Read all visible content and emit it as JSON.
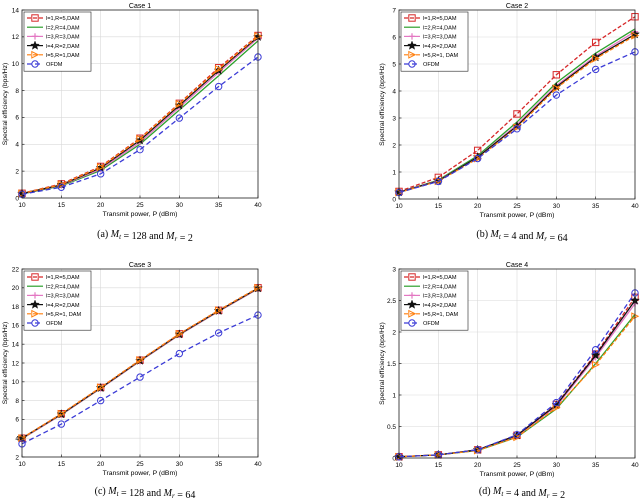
{
  "chart_data": [
    {
      "type": "line",
      "title": "Case 1",
      "xlabel": "Transmit power, P (dBm)",
      "ylabel": "Spectral efficiency (bps/Hz)",
      "caption": "(a)  Mt = 128 and Mr = 2",
      "x": [
        10,
        15,
        20,
        25,
        30,
        35,
        40
      ],
      "xlim": [
        10,
        40
      ],
      "ylim": [
        0,
        14
      ],
      "xticks": [
        10,
        15,
        20,
        25,
        30,
        35,
        40
      ],
      "yticks": [
        0,
        2,
        4,
        6,
        8,
        10,
        12,
        14
      ],
      "grid": true,
      "legend_position": "top-left",
      "series": [
        {
          "name": "l=1,R=5,DAM",
          "color": "#d62728",
          "dash": "4,2",
          "marker": "square",
          "values": [
            0.35,
            1.05,
            2.35,
            4.45,
            7.05,
            9.7,
            12.1
          ]
        },
        {
          "name": "l=2,R=4,DAM",
          "color": "#2ca02c",
          "dash": "",
          "marker": "none",
          "values": [
            0.3,
            0.9,
            2.05,
            4.0,
            6.55,
            9.1,
            11.7
          ]
        },
        {
          "name": "l=3,R=3,DAM",
          "color": "#e377c2",
          "dash": "",
          "marker": "plus",
          "values": [
            0.32,
            0.95,
            2.15,
            4.15,
            6.75,
            9.35,
            11.9
          ]
        },
        {
          "name": "l=4,R=2,DAM",
          "color": "#111111",
          "dash": "",
          "marker": "star",
          "values": [
            0.33,
            0.98,
            2.25,
            4.3,
            6.9,
            9.5,
            12.0
          ]
        },
        {
          "name": "l=5,R=1,DAM",
          "color": "#ff7f0e",
          "dash": "4,2",
          "marker": "triangle",
          "values": [
            0.34,
            1.0,
            2.3,
            4.4,
            7.0,
            9.6,
            12.05
          ]
        },
        {
          "name": "OFDM",
          "color": "#3b3bd6",
          "dash": "5,3",
          "marker": "circle",
          "values": [
            0.28,
            0.8,
            1.8,
            3.6,
            5.95,
            8.3,
            10.5
          ]
        }
      ]
    },
    {
      "type": "line",
      "title": "Case 2",
      "xlabel": "Transmit power, P (dBm)",
      "ylabel": "Spectral efficiency (bps/Hz)",
      "caption": "(b)  Mt = 4 and Mr = 64",
      "x": [
        10,
        15,
        20,
        25,
        30,
        35,
        40
      ],
      "xlim": [
        10,
        40
      ],
      "ylim": [
        0,
        7
      ],
      "xticks": [
        10,
        15,
        20,
        25,
        30,
        35,
        40
      ],
      "yticks": [
        0,
        1,
        2,
        3,
        4,
        5,
        6,
        7
      ],
      "grid": true,
      "legend_position": "top-left",
      "series": [
        {
          "name": "l=1,R=5,DAM",
          "color": "#d62728",
          "dash": "4,2",
          "marker": "square",
          "values": [
            0.28,
            0.8,
            1.8,
            3.15,
            4.6,
            5.8,
            6.75
          ]
        },
        {
          "name": "l=2,R=4,DAM",
          "color": "#2ca02c",
          "dash": "",
          "marker": "none",
          "values": [
            0.25,
            0.7,
            1.6,
            2.85,
            4.3,
            5.4,
            6.3
          ]
        },
        {
          "name": "l=3,R=3,DAM",
          "color": "#e377c2",
          "dash": "",
          "marker": "plus",
          "values": [
            0.25,
            0.68,
            1.55,
            2.75,
            4.2,
            5.3,
            6.2
          ]
        },
        {
          "name": "l=4,R=2,DAM",
          "color": "#111111",
          "dash": "",
          "marker": "star",
          "values": [
            0.25,
            0.67,
            1.55,
            2.7,
            4.15,
            5.25,
            6.1
          ]
        },
        {
          "name": "l=5,R=1, DAM",
          "color": "#ff7f0e",
          "dash": "4,2",
          "marker": "triangle",
          "values": [
            0.24,
            0.66,
            1.5,
            2.65,
            4.1,
            5.2,
            6.05
          ]
        },
        {
          "name": "OFDM",
          "color": "#3b3bd6",
          "dash": "5,3",
          "marker": "circle",
          "values": [
            0.24,
            0.65,
            1.5,
            2.6,
            3.85,
            4.8,
            5.45
          ]
        }
      ]
    },
    {
      "type": "line",
      "title": "Case 3",
      "xlabel": "Transmit power, P (dBm)",
      "ylabel": "Spectral efficiency (bps/Hz)",
      "caption": "(c)  Mt = 128 and Mr = 64",
      "x": [
        10,
        15,
        20,
        25,
        30,
        35,
        40
      ],
      "xlim": [
        10,
        40
      ],
      "ylim": [
        2,
        22
      ],
      "xticks": [
        10,
        15,
        20,
        25,
        30,
        35,
        40
      ],
      "yticks": [
        2,
        4,
        6,
        8,
        10,
        12,
        14,
        16,
        18,
        20,
        22
      ],
      "grid": true,
      "legend_position": "top-left",
      "series": [
        {
          "name": "l=1,R=5,DAM",
          "color": "#d62728",
          "dash": "4,2",
          "marker": "square",
          "values": [
            4.0,
            6.6,
            9.4,
            12.3,
            15.1,
            17.6,
            20.0
          ]
        },
        {
          "name": "l=2,R=4,DAM",
          "color": "#2ca02c",
          "dash": "",
          "marker": "none",
          "values": [
            3.95,
            6.5,
            9.3,
            12.2,
            15.0,
            17.5,
            19.9
          ]
        },
        {
          "name": "l=3,R=3,DAM",
          "color": "#e377c2",
          "dash": "",
          "marker": "plus",
          "values": [
            3.95,
            6.5,
            9.3,
            12.2,
            15.0,
            17.5,
            19.9
          ]
        },
        {
          "name": "l=4,R=2,DAM",
          "color": "#111111",
          "dash": "",
          "marker": "star",
          "values": [
            4.0,
            6.55,
            9.35,
            12.25,
            15.05,
            17.55,
            19.95
          ]
        },
        {
          "name": "l=5,R=1, DAM",
          "color": "#ff7f0e",
          "dash": "4,2",
          "marker": "triangle",
          "values": [
            4.0,
            6.6,
            9.4,
            12.3,
            15.1,
            17.6,
            20.0
          ]
        },
        {
          "name": "OFDM",
          "color": "#3b3bd6",
          "dash": "5,3",
          "marker": "circle",
          "values": [
            3.4,
            5.5,
            8.0,
            10.5,
            13.0,
            15.2,
            17.1
          ]
        }
      ]
    },
    {
      "type": "line",
      "title": "Case 4",
      "xlabel": "Transmit power, P (dBm)",
      "ylabel": "Spectral efficiency (bps/Hz)",
      "caption": "(d)  Mt = 4 and Mr = 2",
      "x": [
        10,
        15,
        20,
        25,
        30,
        35,
        40
      ],
      "xlim": [
        10,
        40
      ],
      "ylim": [
        0,
        3
      ],
      "xticks": [
        10,
        15,
        20,
        25,
        30,
        35,
        40
      ],
      "yticks": [
        0,
        0.5,
        1,
        1.5,
        2,
        2.5,
        3
      ],
      "grid": true,
      "legend_position": "top-left",
      "series": [
        {
          "name": "l=1,R=5,DAM",
          "color": "#d62728",
          "dash": "4,2",
          "marker": "square",
          "values": [
            0.02,
            0.05,
            0.13,
            0.36,
            0.85,
            1.65,
            2.55
          ]
        },
        {
          "name": "l=2,R=4,DAM",
          "color": "#2ca02c",
          "dash": "",
          "marker": "none",
          "values": [
            0.02,
            0.05,
            0.12,
            0.33,
            0.78,
            1.5,
            2.28
          ]
        },
        {
          "name": "l=3,R=3,DAM",
          "color": "#e377c2",
          "dash": "",
          "marker": "plus",
          "values": [
            0.02,
            0.05,
            0.13,
            0.35,
            0.82,
            1.6,
            2.45
          ]
        },
        {
          "name": "l=4,R=2,DAM",
          "color": "#111111",
          "dash": "",
          "marker": "star",
          "values": [
            0.02,
            0.05,
            0.13,
            0.36,
            0.84,
            1.63,
            2.5
          ]
        },
        {
          "name": "l=5,R=1, DAM",
          "color": "#ff7f0e",
          "dash": "4,2",
          "marker": "triangle",
          "values": [
            0.02,
            0.05,
            0.12,
            0.33,
            0.8,
            1.48,
            2.25
          ]
        },
        {
          "name": "OFDM",
          "color": "#3b3bd6",
          "dash": "5,3",
          "marker": "circle",
          "values": [
            0.02,
            0.05,
            0.13,
            0.37,
            0.88,
            1.72,
            2.62
          ]
        }
      ]
    }
  ]
}
